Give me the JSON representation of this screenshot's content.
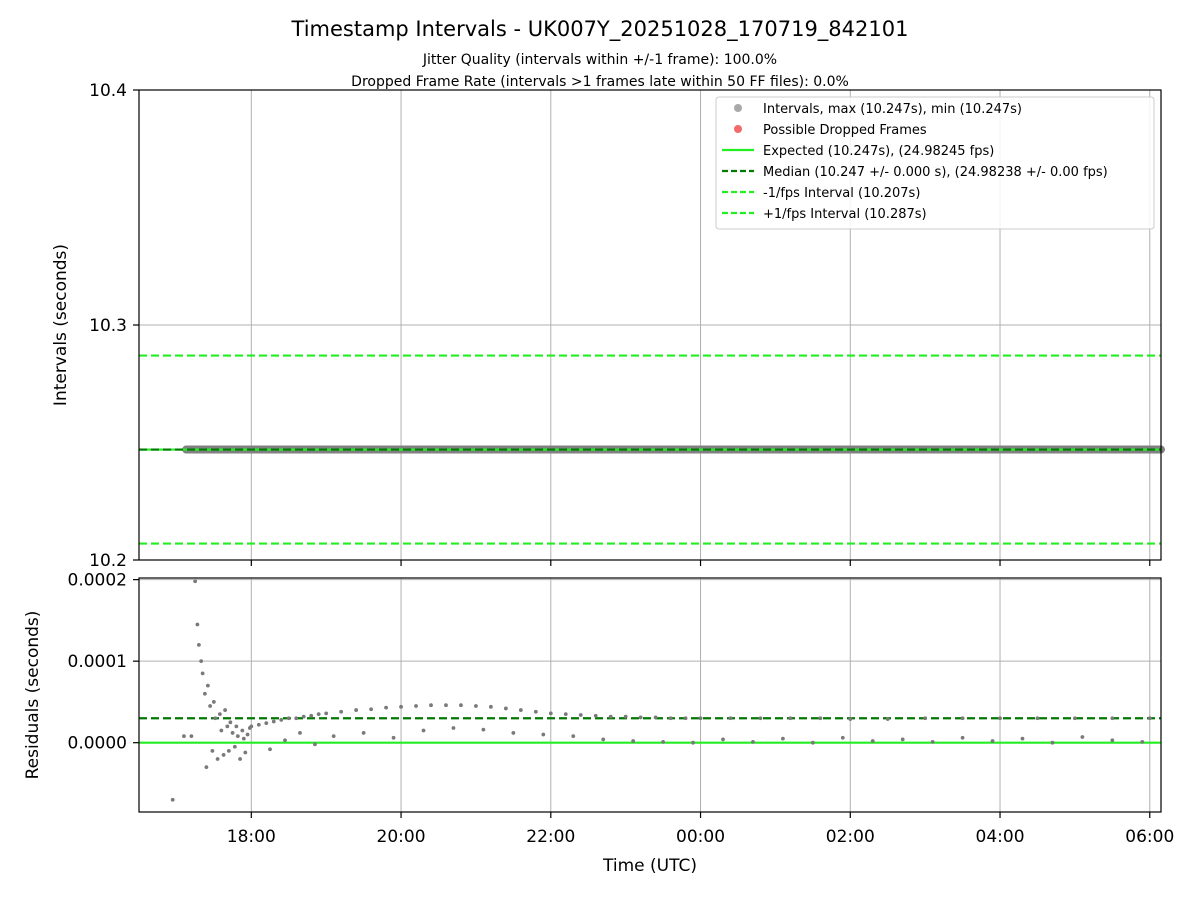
{
  "chart_data": [
    {
      "type": "scatter",
      "title": "Timestamp Intervals - UK007Y_20251028_170719_842101",
      "subtitle_lines": [
        "Jitter Quality (intervals within +/-1 frame): 100.0%",
        "Dropped Frame Rate (intervals >1 frames late within 50 FF files): 0.0%"
      ],
      "panel": "intervals",
      "ylabel": "Intervals (seconds)",
      "ylim": [
        10.2,
        10.4
      ],
      "yticks": [
        "10.2",
        "10.3",
        "10.4"
      ],
      "ytick_values": [
        10.2,
        10.3,
        10.4
      ],
      "xlim_hours": [
        16.5,
        30.15
      ],
      "grid": true,
      "legend_position": "top-right",
      "legend": [
        {
          "label": "Intervals, max (10.247s), min (10.247s)",
          "marker": "dot",
          "color": "#a9a9a9"
        },
        {
          "label": "Possible Dropped Frames",
          "marker": "dot",
          "color": "#f26a6a"
        },
        {
          "label": "Expected (10.247s), (24.98245 fps)",
          "marker": "line",
          "color": "#22ee22",
          "dash": "solid"
        },
        {
          "label": "Median (10.247 +/- 0.000 s), (24.98238 +/- 0.00 fps)",
          "marker": "line",
          "color": "#007a00",
          "dash": "dashed"
        },
        {
          "label": "-1/fps Interval (10.207s)",
          "marker": "line",
          "color": "#22ee22",
          "dash": "dashed"
        },
        {
          "label": "+1/fps Interval (10.287s)",
          "marker": "line",
          "color": "#22ee22",
          "dash": "dashed"
        }
      ],
      "series": [
        {
          "name": "Intervals",
          "x_start_hours": 17.13,
          "x_end_hours": 30.15,
          "value": 10.247,
          "color": "#808080"
        }
      ],
      "reference_lines": [
        {
          "name": "Expected",
          "value": 10.247,
          "color": "#22ee22",
          "dash": "solid"
        },
        {
          "name": "Median",
          "value": 10.247,
          "color": "#007a00",
          "dash": "dashed"
        },
        {
          "name": "-1/fps Interval",
          "value": 10.207,
          "color": "#22ee22",
          "dash": "dashed"
        },
        {
          "name": "+1/fps Interval",
          "value": 10.287,
          "color": "#22ee22",
          "dash": "dashed"
        }
      ]
    },
    {
      "type": "scatter",
      "panel": "residuals",
      "ylabel": "Residuals (seconds)",
      "xlabel": "Time (UTC)",
      "ylim": [
        -8.5e-05,
        0.000202
      ],
      "yticks": [
        "0.0000",
        "0.0001",
        "0.0002"
      ],
      "ytick_values": [
        0.0,
        0.0001,
        0.0002
      ],
      "xlim_hours": [
        16.5,
        30.15
      ],
      "xticks": [
        "18:00",
        "20:00",
        "22:00",
        "00:00",
        "02:00",
        "04:00",
        "06:00"
      ],
      "xtick_hours": [
        18,
        20,
        22,
        24,
        26,
        28,
        30
      ],
      "grid": true,
      "reference_lines": [
        {
          "name": "Expected",
          "value": 0.0,
          "color": "#22ee22",
          "dash": "solid"
        },
        {
          "name": "Median",
          "value": 3e-05,
          "color": "#007a00",
          "dash": "dashed"
        }
      ],
      "series": [
        {
          "name": "Residuals",
          "color": "#7a7a7a",
          "x_hours": [
            16.95,
            17.1,
            17.2,
            17.25,
            17.28,
            17.3,
            17.33,
            17.35,
            17.38,
            17.4,
            17.42,
            17.45,
            17.48,
            17.5,
            17.52,
            17.55,
            17.58,
            17.6,
            17.63,
            17.65,
            17.68,
            17.7,
            17.72,
            17.75,
            17.78,
            17.8,
            17.82,
            17.85,
            17.88,
            17.9,
            17.92,
            17.95,
            17.98,
            18.0,
            18.1,
            18.2,
            18.3,
            18.4,
            18.5,
            18.6,
            18.7,
            18.8,
            18.9,
            19.0,
            19.2,
            19.4,
            19.6,
            19.8,
            20.0,
            20.2,
            20.4,
            20.6,
            20.8,
            21.0,
            21.2,
            21.4,
            21.6,
            21.8,
            22.0,
            22.2,
            22.4,
            22.6,
            22.8,
            23.0,
            23.2,
            23.4,
            23.6,
            23.8,
            24.0,
            24.4,
            24.8,
            25.2,
            25.6,
            26.0,
            26.5,
            27.0,
            27.5,
            28.0,
            28.5,
            29.0,
            29.5,
            30.0,
            19.1,
            19.5,
            19.9,
            20.3,
            20.7,
            21.1,
            21.5,
            21.9,
            22.3,
            22.7,
            23.1,
            23.5,
            23.9,
            24.3,
            24.7,
            25.1,
            25.5,
            25.9,
            26.3,
            26.7,
            27.1,
            27.5,
            27.9,
            28.3,
            28.7,
            29.1,
            29.5,
            29.9,
            18.25,
            18.45,
            18.65,
            18.85
          ],
          "y_values": [
            -7e-05,
            8e-06,
            8e-06,
            0.000198,
            0.000145,
            0.00012,
            0.0001,
            8.5e-05,
            6e-05,
            -3e-05,
            7e-05,
            4.5e-05,
            -1e-05,
            5e-05,
            3e-05,
            -2e-05,
            3.5e-05,
            1.5e-05,
            -1.5e-05,
            4e-05,
            2e-05,
            -1e-05,
            2.5e-05,
            1.2e-05,
            -5e-06,
            2e-05,
            8e-06,
            -2e-05,
            1.5e-05,
            5e-06,
            -1.2e-05,
            1e-05,
            1.8e-05,
            2e-05,
            2.2e-05,
            2.4e-05,
            2.6e-05,
            2.8e-05,
            3e-05,
            3e-05,
            3.2e-05,
            3.3e-05,
            3.5e-05,
            3.6e-05,
            3.8e-05,
            4e-05,
            4.1e-05,
            4.3e-05,
            4.4e-05,
            4.5e-05,
            4.6e-05,
            4.6e-05,
            4.6e-05,
            4.5e-05,
            4.4e-05,
            4.2e-05,
            4e-05,
            3.8e-05,
            3.6e-05,
            3.5e-05,
            3.4e-05,
            3.3e-05,
            3.2e-05,
            3.2e-05,
            3.1e-05,
            3.1e-05,
            3e-05,
            3e-05,
            3e-05,
            3e-05,
            3e-05,
            3e-05,
            3e-05,
            2.9e-05,
            2.9e-05,
            3e-05,
            3e-05,
            3e-05,
            3e-05,
            3e-05,
            3e-05,
            3e-05,
            8e-06,
            1.2e-05,
            6e-06,
            1.5e-05,
            1.8e-05,
            1.6e-05,
            1.2e-05,
            1e-05,
            8e-06,
            4e-06,
            2e-06,
            1e-06,
            0.0,
            4e-06,
            1e-06,
            5e-06,
            0.0,
            6e-06,
            2e-06,
            4e-06,
            1e-06,
            6e-06,
            2e-06,
            5e-06,
            0.0,
            7e-06,
            3e-06,
            1e-06,
            -8e-06,
            3e-06,
            1.2e-05,
            -2e-06
          ]
        }
      ]
    }
  ]
}
